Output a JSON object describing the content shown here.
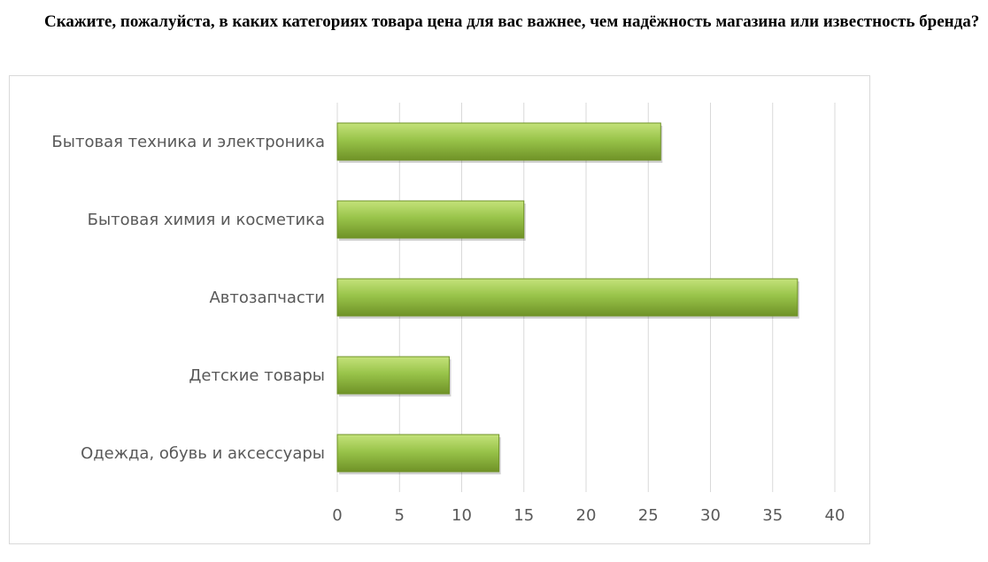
{
  "question": "Скажите, пожалуйста, в каких категориях товара цена для вас важнее, чем надёжность магазина или известность бренда?",
  "colors": {
    "bar_light": "#c4e27a",
    "bar_mid": "#99c44a",
    "bar_dark": "#6f9227",
    "grid": "#d9d9d9",
    "text": "#595959"
  },
  "chart_data": {
    "type": "bar",
    "orientation": "horizontal",
    "categories": [
      "Бытовая техника и электроника",
      "Бытовая химия и косметика",
      "Автозапчасти",
      "Детские товары",
      "Одежда, обувь и аксессуары"
    ],
    "values": [
      26,
      15,
      37,
      9,
      13
    ],
    "xlim": [
      0,
      40
    ],
    "xticks": [
      "0",
      "5",
      "10",
      "15",
      "20",
      "25",
      "30",
      "35",
      "40"
    ],
    "grid": true,
    "legend": "none",
    "title": "",
    "xlabel": "",
    "ylabel": ""
  }
}
